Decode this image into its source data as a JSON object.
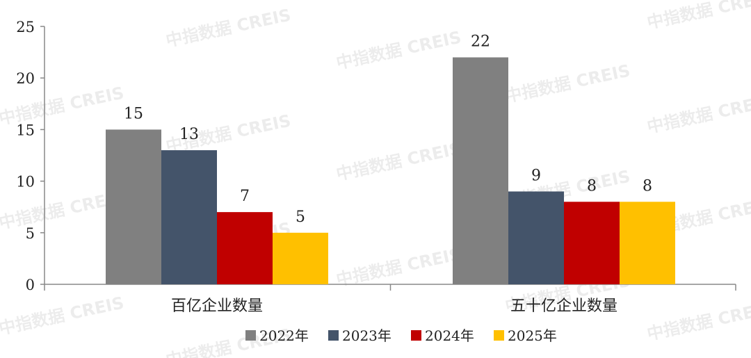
{
  "watermark": "中指数据 CREIS",
  "chart_data": {
    "type": "bar",
    "title": "",
    "xlabel": "",
    "ylabel": "",
    "ylim": [
      0,
      25
    ],
    "yticks": [
      0,
      5,
      10,
      15,
      20,
      25
    ],
    "grid": false,
    "legend_position": "bottom",
    "categories": [
      "百亿企业数量",
      "五十亿企业数量"
    ],
    "series": [
      {
        "name": "2022年",
        "color": "#808080",
        "values": [
          15,
          22
        ]
      },
      {
        "name": "2023年",
        "color": "#44546A",
        "values": [
          13,
          9
        ]
      },
      {
        "name": "2024年",
        "color": "#C00000",
        "values": [
          7,
          8
        ]
      },
      {
        "name": "2025年",
        "color": "#FFC000",
        "values": [
          5,
          8
        ]
      }
    ]
  }
}
